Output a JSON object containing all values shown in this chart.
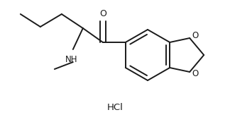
{
  "bg_color": "#ffffff",
  "line_color": "#1a1a1a",
  "line_width": 1.4,
  "font_size_label": 8.5,
  "font_size_hcl": 9.5,
  "hcl_text": "HCl",
  "o_label": "O",
  "nh_label": "NH",
  "figsize": [
    3.24,
    1.73
  ],
  "dpi": 100
}
